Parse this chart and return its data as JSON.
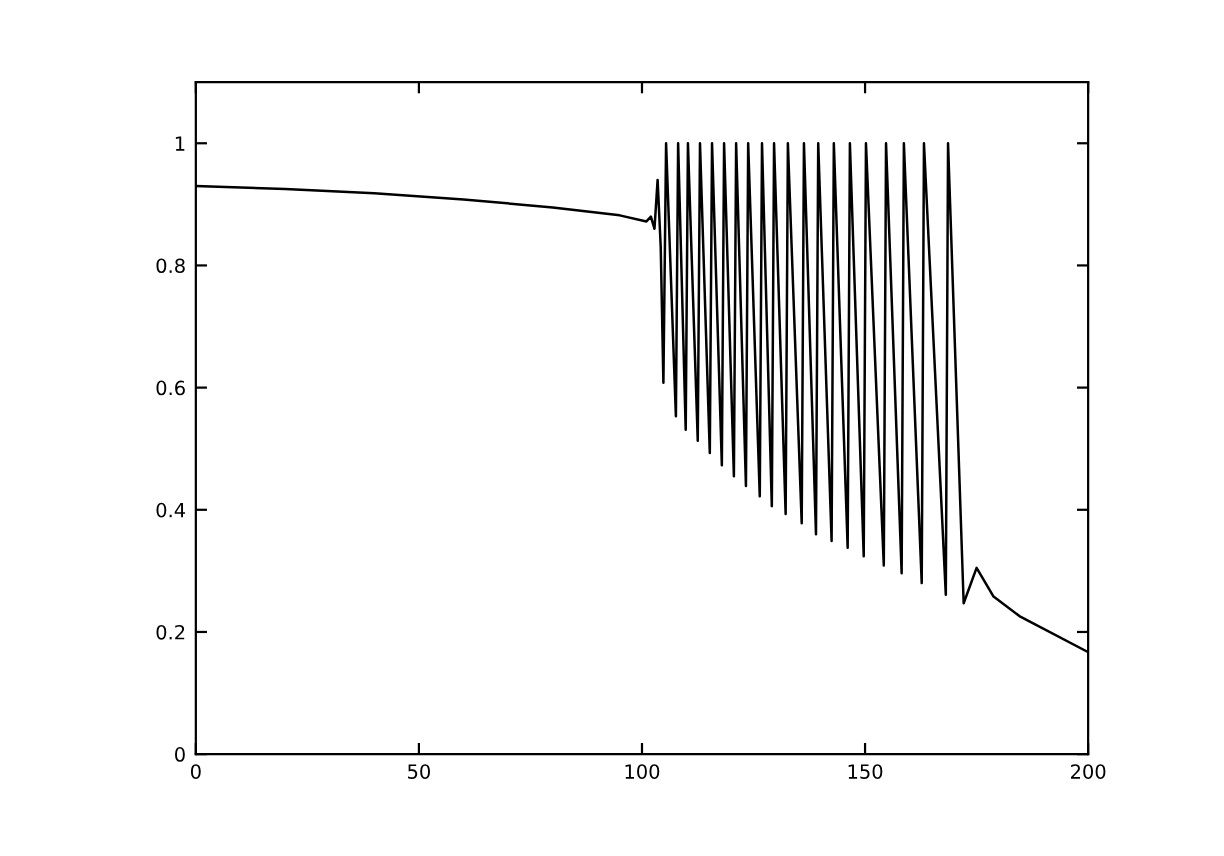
{
  "chart_data": {
    "type": "line",
    "xlim": [
      0,
      200
    ],
    "ylim": [
      0,
      1.1
    ],
    "xticks": [
      0,
      50,
      100,
      150,
      200
    ],
    "yticks": [
      0,
      0.2,
      0.4,
      0.6,
      0.8,
      1
    ],
    "grid": false,
    "legend": false,
    "marker": "none",
    "line_style": "solid",
    "series": [
      {
        "color": "#000000",
        "x": [
          0,
          20,
          40,
          60,
          80,
          95,
          101,
          102,
          102.8,
          103.5,
          104.2,
          104.8,
          105.4,
          107.6,
          108.1,
          109.8,
          110.3,
          112.5,
          113.0,
          115.2,
          115.7,
          117.9,
          118.4,
          120.6,
          121.1,
          123.3,
          123.8,
          126.4,
          126.9,
          129.1,
          129.6,
          132.2,
          132.7,
          135.8,
          136.3,
          139.0,
          139.5,
          142.5,
          143.0,
          146.1,
          146.6,
          149.7,
          150.2,
          154.2,
          154.7,
          158.2,
          158.7,
          162.7,
          163.2,
          168.1,
          168.6,
          172.1,
          175.0,
          178.8,
          184.8,
          200
        ],
        "values": [
          0.93,
          0.925,
          0.918,
          0.908,
          0.895,
          0.882,
          0.872,
          0.88,
          0.86,
          0.94,
          0.83,
          0.608,
          1,
          0.553,
          1,
          0.531,
          1,
          0.513,
          1,
          0.493,
          1,
          0.473,
          1,
          0.455,
          1,
          0.439,
          1,
          0.422,
          1,
          0.406,
          1,
          0.393,
          1,
          0.378,
          1,
          0.36,
          1,
          0.349,
          1,
          0.338,
          1,
          0.324,
          1,
          0.309,
          1,
          0.296,
          1,
          0.28,
          1,
          0.261,
          1,
          0.247,
          0.305,
          0.258,
          0.225,
          0.167
        ]
      }
    ]
  }
}
